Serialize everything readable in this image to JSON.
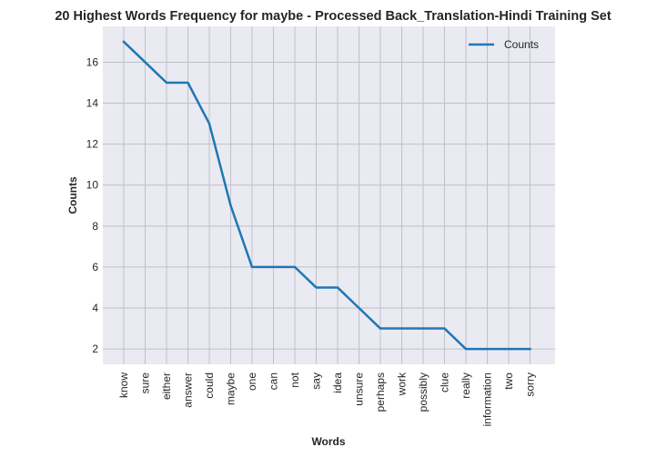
{
  "chart_data": {
    "type": "line",
    "title": "20 Highest Words Frequency for maybe - Processed Back_Translation-Hindi Training Set",
    "xlabel": "Words",
    "ylabel": "Counts",
    "categories": [
      "know",
      "sure",
      "either",
      "answer",
      "could",
      "maybe",
      "one",
      "can",
      "not",
      "say",
      "idea",
      "unsure",
      "perhaps",
      "work",
      "possibly",
      "clue",
      "really",
      "information",
      "two",
      "sorry"
    ],
    "series": [
      {
        "name": "Counts",
        "values": [
          17,
          16,
          15,
          15,
          13,
          9,
          6,
          6,
          6,
          5,
          5,
          4,
          3,
          3,
          3,
          3,
          2,
          2,
          2,
          2
        ],
        "color": "#1f77b4"
      }
    ],
    "yticks": [
      2,
      4,
      6,
      8,
      10,
      12,
      14,
      16
    ],
    "ylim": [
      1.25,
      17.75
    ],
    "grid": true,
    "legend": "top-right",
    "colors": {
      "plot_background": "#eaeaf2",
      "grid": "#c0c0c8",
      "line": "#1f77b4"
    }
  }
}
